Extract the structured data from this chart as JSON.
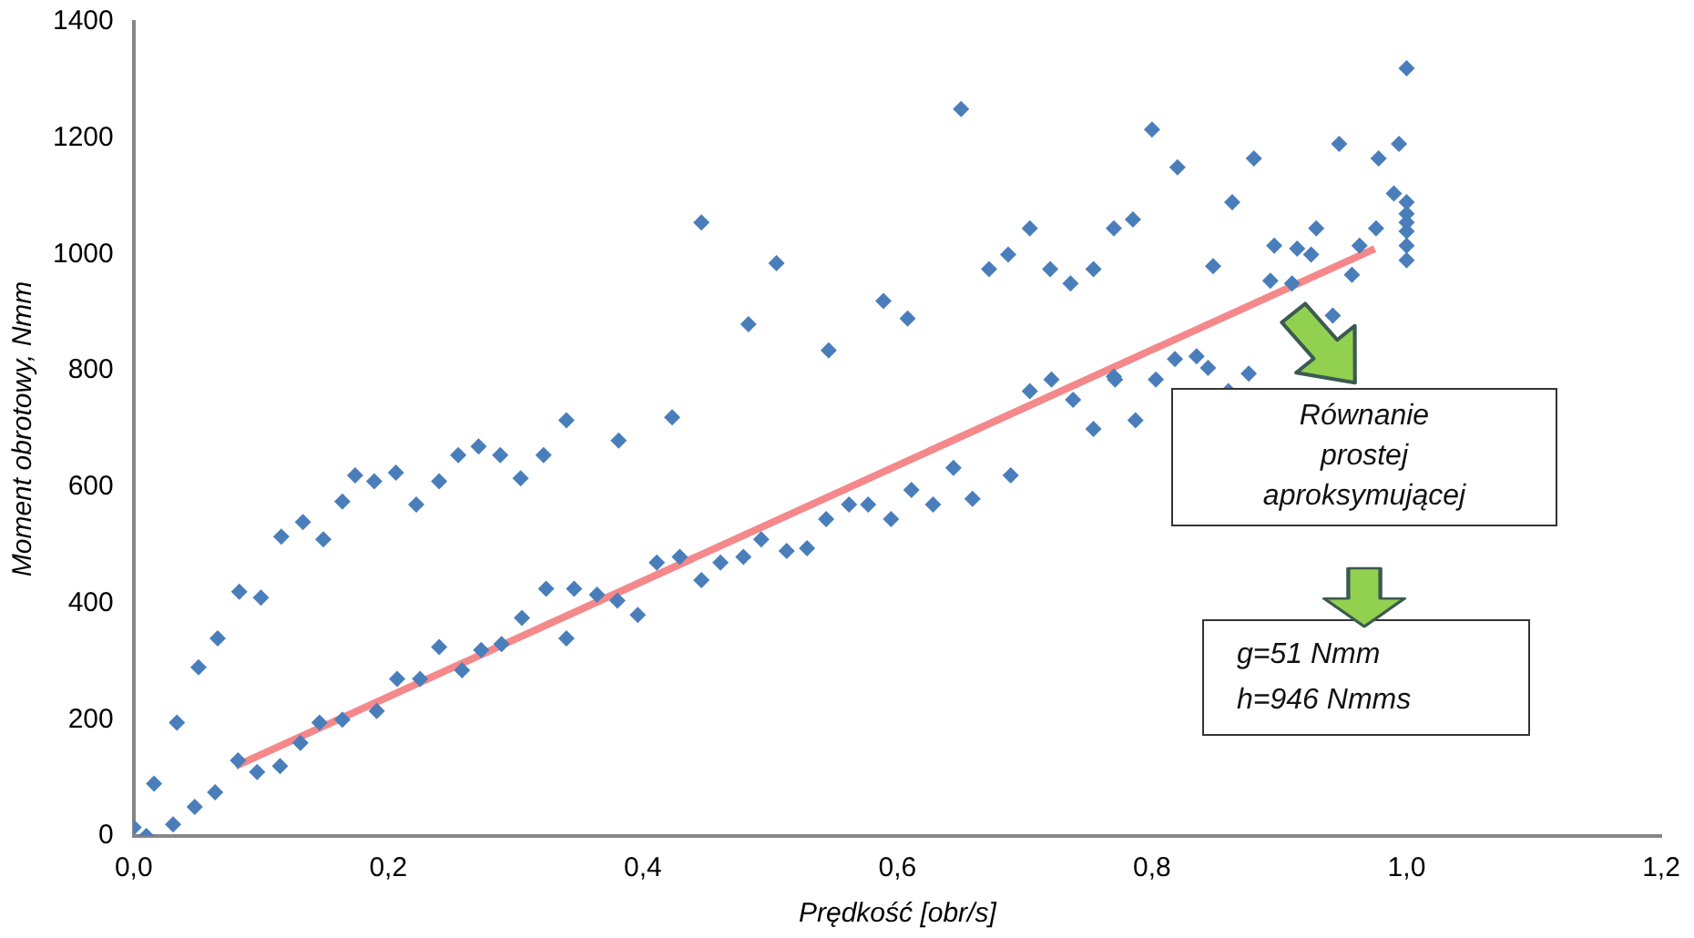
{
  "chart_data": {
    "type": "scatter",
    "xlabel": "Prędkość [obr/s]",
    "ylabel": "Moment obrotowy, Nmm",
    "xlim": [
      0,
      1.2
    ],
    "xticks": [
      {
        "value": 0,
        "label": "0,0"
      },
      {
        "value": 0.2,
        "label": "0,2"
      },
      {
        "value": 0.4,
        "label": "0,4"
      },
      {
        "value": 0.6,
        "label": "0,6"
      },
      {
        "value": 0.8,
        "label": "0,8"
      },
      {
        "value": 1,
        "label": "1,0"
      },
      {
        "value": 1.2,
        "label": "1,2"
      }
    ],
    "ylim": [
      0,
      1400
    ],
    "yticks": [
      0,
      200,
      400,
      600,
      800,
      1000,
      1200,
      1400
    ],
    "grid": false,
    "legend": false,
    "marker": "diamond",
    "series": [
      {
        "type": "scatter",
        "color": "#4a7ebb",
        "x": [
          0.0,
          0.01,
          0.016,
          0.031,
          0.034,
          0.048,
          0.051,
          0.064,
          0.066,
          0.082,
          0.083,
          0.097,
          0.1,
          0.115,
          0.116,
          0.131,
          0.133,
          0.146,
          0.149,
          0.164,
          0.164,
          0.174,
          0.189,
          0.191,
          0.206,
          0.207,
          0.222,
          0.225,
          0.24,
          0.24,
          0.255,
          0.258,
          0.271,
          0.273,
          0.288,
          0.289,
          0.304,
          0.305,
          0.322,
          0.324,
          0.34,
          0.34,
          0.346,
          0.364,
          0.38,
          0.381,
          0.396,
          0.411,
          0.423,
          0.429,
          0.446,
          0.446,
          0.461,
          0.479,
          0.483,
          0.493,
          0.505,
          0.513,
          0.529,
          0.544,
          0.546,
          0.562,
          0.577,
          0.589,
          0.595,
          0.608,
          0.611,
          0.628,
          0.644,
          0.65,
          0.659,
          0.672,
          0.687,
          0.689,
          0.704,
          0.704,
          0.72,
          0.721,
          0.736,
          0.738,
          0.754,
          0.754,
          0.77,
          0.77,
          0.771,
          0.785,
          0.787,
          0.8,
          0.803,
          0.818,
          0.82,
          0.835,
          0.844,
          0.848,
          0.86,
          0.863,
          0.876,
          0.88,
          0.893,
          0.896,
          0.91,
          0.914,
          0.925,
          0.929,
          0.942,
          0.947,
          0.957,
          0.963,
          0.976,
          0.978,
          0.99,
          0.994,
          1.0,
          1.0,
          1.0,
          1.0,
          1.0,
          1.0,
          1.0
        ],
        "values": [
          15,
          0,
          90,
          20,
          195,
          50,
          290,
          75,
          340,
          130,
          420,
          110,
          410,
          120,
          515,
          160,
          540,
          195,
          510,
          200,
          575,
          620,
          610,
          215,
          625,
          270,
          570,
          270,
          610,
          325,
          655,
          285,
          670,
          320,
          655,
          330,
          615,
          375,
          655,
          425,
          715,
          340,
          425,
          415,
          405,
          680,
          380,
          470,
          720,
          480,
          1055,
          440,
          470,
          480,
          880,
          510,
          985,
          490,
          495,
          545,
          835,
          570,
          570,
          920,
          545,
          890,
          595,
          570,
          633,
          1250,
          580,
          975,
          1000,
          620,
          1045,
          765,
          975,
          785,
          950,
          750,
          975,
          700,
          1045,
          790,
          785,
          1060,
          715,
          1215,
          785,
          820,
          1150,
          825,
          805,
          980,
          765,
          1090,
          795,
          1165,
          955,
          1015,
          950,
          1010,
          1000,
          1045,
          895,
          1190,
          965,
          1015,
          1045,
          1165,
          1105,
          1190,
          1320,
          1090,
          1070,
          1055,
          1040,
          1015,
          990
        ]
      },
      {
        "type": "line",
        "color": "#f4888a",
        "marker": "none",
        "x": [
          0.08,
          0.975
        ],
        "values": [
          120,
          1010
        ]
      }
    ],
    "annotations": [
      "Równanie prostej aproksymującej",
      "g=51 Nmm\nh=946 Nmms"
    ]
  }
}
